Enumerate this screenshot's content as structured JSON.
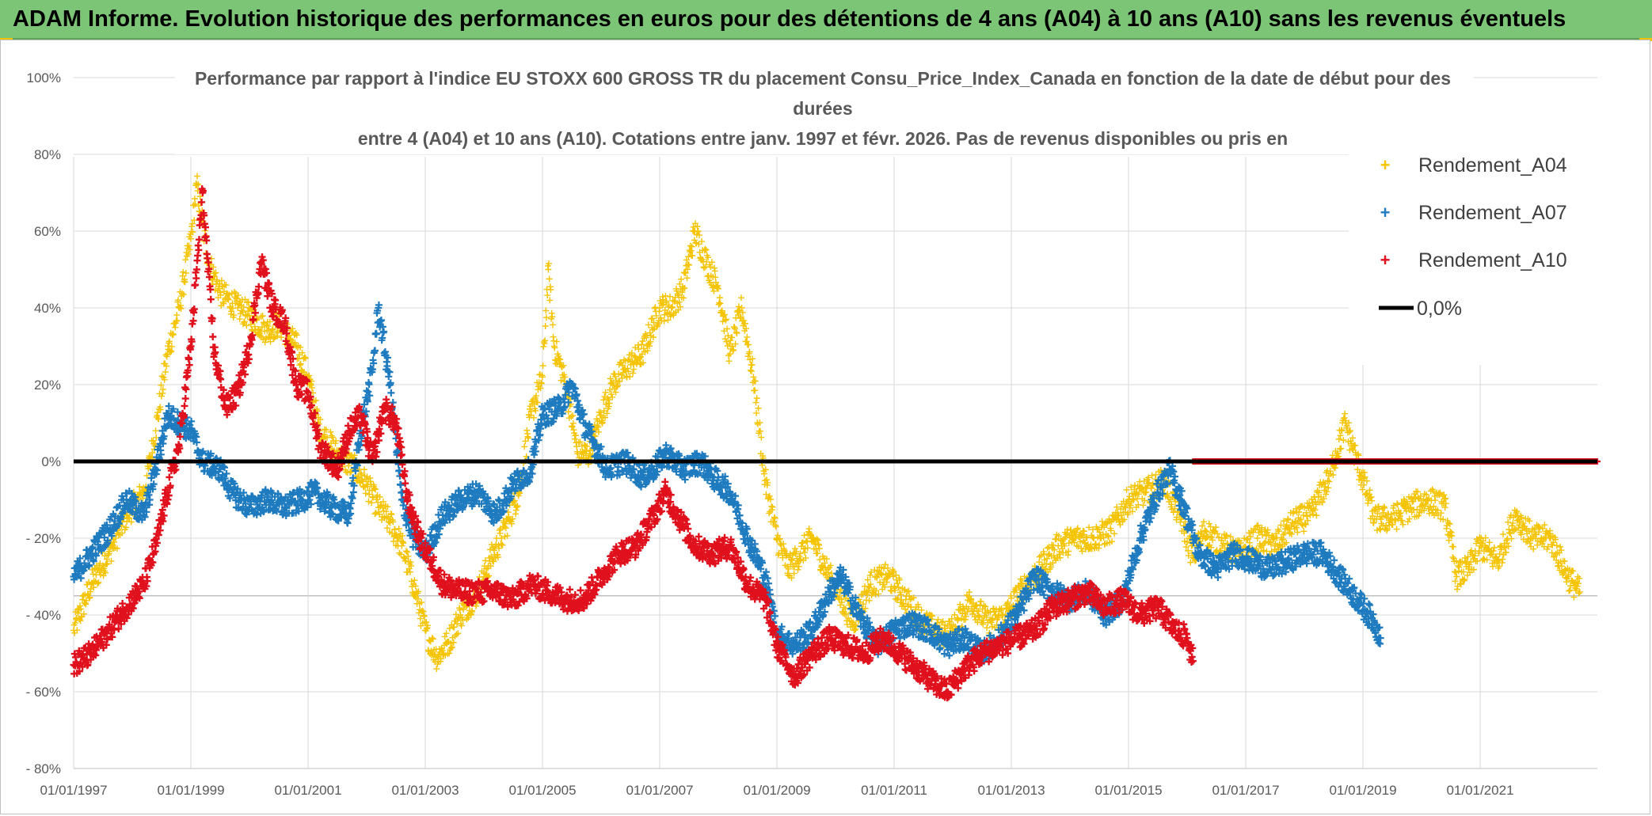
{
  "banner": {
    "title": "ADAM Informe. Evolution historique des performances en euros pour des détentions de 4 ans (A04) à 10 ans (A10) sans les revenus éventuels"
  },
  "colors": {
    "banner_bg": "#7cc576",
    "a04": "#f5c400",
    "a07": "#1f7bbf",
    "a10": "#e0101c",
    "zero": "#000000",
    "grid": "#d9d9d9"
  },
  "chart_data": {
    "type": "scatter",
    "title_lines": [
      "Performance par rapport à l'indice EU STOXX 600 GROSS TR  du placement Consu_Price_Index_Canada en fonction de la date de début pour des",
      "durées",
      "entre 4 (A04) et 10 ans (A10). Cotations entre janv. 1997 et févr. 2026. Pas de revenus disponibles ou pris en"
    ],
    "y_ticks": [
      "100%",
      "80%",
      "60%",
      "40%",
      "20%",
      "0%",
      "- 20%",
      "- 40%",
      "- 60%",
      "- 80%"
    ],
    "x_ticks": [
      "01/01/1997",
      "01/01/1999",
      "01/01/2001",
      "01/01/2003",
      "01/01/2005",
      "01/01/2007",
      "01/01/2009",
      "01/01/2011",
      "01/01/2013",
      "01/01/2015",
      "01/01/2017",
      "01/01/2019",
      "01/01/2021"
    ],
    "ylim": [
      -80,
      100
    ],
    "xlim": [
      1997.0,
      2023.0
    ],
    "legend_position": "top-right",
    "series": [
      {
        "name": "Rendement_A04",
        "marker": "+",
        "points": [
          [
            1997.0,
            -44
          ],
          [
            1997.3,
            -32
          ],
          [
            1997.6,
            -24
          ],
          [
            1997.9,
            -14
          ],
          [
            1998.2,
            -8
          ],
          [
            1998.4,
            8
          ],
          [
            1998.6,
            28
          ],
          [
            1998.8,
            40
          ],
          [
            1999.0,
            58
          ],
          [
            1999.1,
            72
          ],
          [
            1999.3,
            52
          ],
          [
            1999.5,
            44
          ],
          [
            1999.8,
            40
          ],
          [
            2000.0,
            38
          ],
          [
            2000.3,
            34
          ],
          [
            2000.5,
            36
          ],
          [
            2000.8,
            30
          ],
          [
            2001.0,
            22
          ],
          [
            2001.2,
            8
          ],
          [
            2001.5,
            2
          ],
          [
            2001.8,
            -2
          ],
          [
            2002.0,
            -6
          ],
          [
            2002.2,
            -12
          ],
          [
            2002.4,
            -16
          ],
          [
            2002.6,
            -22
          ],
          [
            2002.8,
            -32
          ],
          [
            2003.0,
            -44
          ],
          [
            2003.2,
            -51
          ],
          [
            2003.4,
            -47
          ],
          [
            2003.6,
            -40
          ],
          [
            2003.9,
            -34
          ],
          [
            2004.1,
            -26
          ],
          [
            2004.3,
            -20
          ],
          [
            2004.6,
            -8
          ],
          [
            2004.8,
            12
          ],
          [
            2005.0,
            22
          ],
          [
            2005.1,
            50
          ],
          [
            2005.2,
            30
          ],
          [
            2005.4,
            20
          ],
          [
            2005.6,
            2
          ],
          [
            2005.8,
            2
          ],
          [
            2006.0,
            12
          ],
          [
            2006.2,
            20
          ],
          [
            2006.4,
            24
          ],
          [
            2006.7,
            28
          ],
          [
            2007.0,
            40
          ],
          [
            2007.2,
            40
          ],
          [
            2007.4,
            45
          ],
          [
            2007.6,
            60
          ],
          [
            2007.8,
            52
          ],
          [
            2008.0,
            45
          ],
          [
            2008.2,
            28
          ],
          [
            2008.4,
            40
          ],
          [
            2008.6,
            22
          ],
          [
            2008.8,
            -5
          ],
          [
            2009.0,
            -20
          ],
          [
            2009.2,
            -28
          ],
          [
            2009.4,
            -24
          ],
          [
            2009.6,
            -20
          ],
          [
            2009.9,
            -30
          ],
          [
            2010.1,
            -36
          ],
          [
            2010.3,
            -42
          ],
          [
            2010.6,
            -32
          ],
          [
            2010.9,
            -30
          ],
          [
            2011.2,
            -36
          ],
          [
            2011.5,
            -42
          ],
          [
            2011.8,
            -45
          ],
          [
            2012.0,
            -44
          ],
          [
            2012.3,
            -36
          ],
          [
            2012.6,
            -42
          ],
          [
            2012.9,
            -40
          ],
          [
            2013.2,
            -33
          ],
          [
            2013.5,
            -28
          ],
          [
            2013.8,
            -22
          ],
          [
            2014.1,
            -20
          ],
          [
            2014.4,
            -20
          ],
          [
            2014.7,
            -18
          ],
          [
            2015.0,
            -10
          ],
          [
            2015.3,
            -8
          ],
          [
            2015.6,
            -5
          ],
          [
            2015.9,
            -15
          ],
          [
            2016.1,
            -25
          ],
          [
            2016.3,
            -18
          ],
          [
            2016.6,
            -22
          ],
          [
            2016.9,
            -24
          ],
          [
            2017.2,
            -20
          ],
          [
            2017.5,
            -22
          ],
          [
            2017.8,
            -16
          ],
          [
            2018.1,
            -14
          ],
          [
            2018.4,
            -5
          ],
          [
            2018.7,
            10
          ],
          [
            2018.9,
            0
          ],
          [
            2019.2,
            -15
          ],
          [
            2019.5,
            -15
          ],
          [
            2019.8,
            -12
          ],
          [
            2020.1,
            -10
          ],
          [
            2020.4,
            -12
          ],
          [
            2020.6,
            -30
          ],
          [
            2020.8,
            -28
          ],
          [
            2021.0,
            -22
          ],
          [
            2021.3,
            -26
          ],
          [
            2021.6,
            -14
          ],
          [
            2021.9,
            -20
          ],
          [
            2022.2,
            -20
          ],
          [
            2022.5,
            -30
          ],
          [
            2022.7,
            -34
          ]
        ]
      },
      {
        "name": "Rendement_A07",
        "marker": "+",
        "points": [
          [
            1997.0,
            -30
          ],
          [
            1997.3,
            -24
          ],
          [
            1997.6,
            -18
          ],
          [
            1997.9,
            -10
          ],
          [
            1998.2,
            -14
          ],
          [
            1998.4,
            -2
          ],
          [
            1998.6,
            12
          ],
          [
            1998.8,
            10
          ],
          [
            1999.0,
            8
          ],
          [
            1999.2,
            0
          ],
          [
            1999.5,
            -2
          ],
          [
            1999.7,
            -8
          ],
          [
            2000.0,
            -12
          ],
          [
            2000.3,
            -10
          ],
          [
            2000.6,
            -12
          ],
          [
            2000.9,
            -10
          ],
          [
            2001.1,
            -8
          ],
          [
            2001.4,
            -12
          ],
          [
            2001.7,
            -14
          ],
          [
            2001.9,
            8
          ],
          [
            2002.1,
            24
          ],
          [
            2002.2,
            40
          ],
          [
            2002.4,
            20
          ],
          [
            2002.6,
            -10
          ],
          [
            2002.8,
            -20
          ],
          [
            2003.0,
            -24
          ],
          [
            2003.3,
            -14
          ],
          [
            2003.6,
            -10
          ],
          [
            2003.9,
            -8
          ],
          [
            2004.2,
            -14
          ],
          [
            2004.5,
            -6
          ],
          [
            2004.8,
            -2
          ],
          [
            2005.0,
            12
          ],
          [
            2005.3,
            14
          ],
          [
            2005.5,
            20
          ],
          [
            2005.7,
            10
          ],
          [
            2005.9,
            4
          ],
          [
            2006.1,
            -2
          ],
          [
            2006.4,
            0
          ],
          [
            2006.7,
            -4
          ],
          [
            2006.9,
            -2
          ],
          [
            2007.1,
            2
          ],
          [
            2007.4,
            -2
          ],
          [
            2007.7,
            0
          ],
          [
            2007.9,
            -4
          ],
          [
            2008.2,
            -8
          ],
          [
            2008.5,
            -20
          ],
          [
            2008.8,
            -30
          ],
          [
            2009.0,
            -45
          ],
          [
            2009.3,
            -48
          ],
          [
            2009.6,
            -44
          ],
          [
            2009.9,
            -34
          ],
          [
            2010.1,
            -30
          ],
          [
            2010.4,
            -40
          ],
          [
            2010.7,
            -48
          ],
          [
            2011.0,
            -44
          ],
          [
            2011.3,
            -42
          ],
          [
            2011.6,
            -44
          ],
          [
            2011.9,
            -48
          ],
          [
            2012.2,
            -46
          ],
          [
            2012.5,
            -50
          ],
          [
            2012.8,
            -46
          ],
          [
            2013.1,
            -40
          ],
          [
            2013.4,
            -30
          ],
          [
            2013.7,
            -34
          ],
          [
            2014.0,
            -36
          ],
          [
            2014.3,
            -34
          ],
          [
            2014.6,
            -40
          ],
          [
            2014.9,
            -36
          ],
          [
            2015.2,
            -20
          ],
          [
            2015.5,
            -8
          ],
          [
            2015.7,
            -2
          ],
          [
            2015.9,
            -10
          ],
          [
            2016.2,
            -24
          ],
          [
            2016.5,
            -28
          ],
          [
            2016.8,
            -24
          ],
          [
            2017.1,
            -26
          ],
          [
            2017.4,
            -28
          ],
          [
            2017.7,
            -26
          ],
          [
            2018.0,
            -24
          ],
          [
            2018.3,
            -24
          ],
          [
            2018.6,
            -30
          ],
          [
            2018.9,
            -36
          ],
          [
            2019.2,
            -42
          ],
          [
            2019.3,
            -46
          ]
        ]
      },
      {
        "name": "Rendement_A10",
        "marker": "+",
        "points": [
          [
            1997.0,
            -53
          ],
          [
            1997.3,
            -50
          ],
          [
            1997.6,
            -44
          ],
          [
            1997.9,
            -38
          ],
          [
            1998.2,
            -32
          ],
          [
            1998.4,
            -22
          ],
          [
            1998.6,
            -8
          ],
          [
            1998.8,
            4
          ],
          [
            1999.0,
            30
          ],
          [
            1999.1,
            50
          ],
          [
            1999.2,
            70
          ],
          [
            1999.4,
            28
          ],
          [
            1999.6,
            14
          ],
          [
            1999.8,
            18
          ],
          [
            2000.0,
            30
          ],
          [
            2000.2,
            52
          ],
          [
            2000.4,
            40
          ],
          [
            2000.6,
            36
          ],
          [
            2000.8,
            20
          ],
          [
            2001.0,
            18
          ],
          [
            2001.2,
            4
          ],
          [
            2001.5,
            -2
          ],
          [
            2001.7,
            8
          ],
          [
            2001.9,
            12
          ],
          [
            2002.1,
            0
          ],
          [
            2002.3,
            14
          ],
          [
            2002.5,
            10
          ],
          [
            2002.7,
            -10
          ],
          [
            2002.9,
            -20
          ],
          [
            2003.1,
            -26
          ],
          [
            2003.3,
            -32
          ],
          [
            2003.6,
            -34
          ],
          [
            2003.9,
            -34
          ],
          [
            2004.2,
            -34
          ],
          [
            2004.5,
            -36
          ],
          [
            2004.8,
            -32
          ],
          [
            2005.1,
            -34
          ],
          [
            2005.4,
            -36
          ],
          [
            2005.7,
            -36
          ],
          [
            2006.0,
            -30
          ],
          [
            2006.3,
            -24
          ],
          [
            2006.6,
            -22
          ],
          [
            2006.9,
            -14
          ],
          [
            2007.1,
            -8
          ],
          [
            2007.3,
            -14
          ],
          [
            2007.6,
            -22
          ],
          [
            2007.9,
            -24
          ],
          [
            2008.2,
            -22
          ],
          [
            2008.5,
            -32
          ],
          [
            2008.8,
            -36
          ],
          [
            2009.0,
            -48
          ],
          [
            2009.3,
            -56
          ],
          [
            2009.6,
            -50
          ],
          [
            2009.9,
            -46
          ],
          [
            2010.2,
            -48
          ],
          [
            2010.5,
            -50
          ],
          [
            2010.8,
            -46
          ],
          [
            2011.1,
            -50
          ],
          [
            2011.4,
            -54
          ],
          [
            2011.7,
            -58
          ],
          [
            2011.9,
            -60
          ],
          [
            2012.2,
            -54
          ],
          [
            2012.5,
            -50
          ],
          [
            2012.8,
            -48
          ],
          [
            2013.1,
            -46
          ],
          [
            2013.4,
            -44
          ],
          [
            2013.7,
            -38
          ],
          [
            2014.0,
            -36
          ],
          [
            2014.3,
            -34
          ],
          [
            2014.6,
            -38
          ],
          [
            2014.9,
            -36
          ],
          [
            2015.2,
            -40
          ],
          [
            2015.5,
            -38
          ],
          [
            2015.8,
            -44
          ],
          [
            2016.0,
            -46
          ],
          [
            2016.1,
            -52
          ]
        ]
      },
      {
        "name": "0,0%",
        "type": "line",
        "x": [
          1997.0,
          2023.0
        ],
        "y": [
          0,
          0
        ]
      }
    ],
    "zero_marker_band": {
      "series": "Rendement_A10",
      "x_start": 2016.1,
      "x_end": 2023.0,
      "y": 0
    }
  }
}
